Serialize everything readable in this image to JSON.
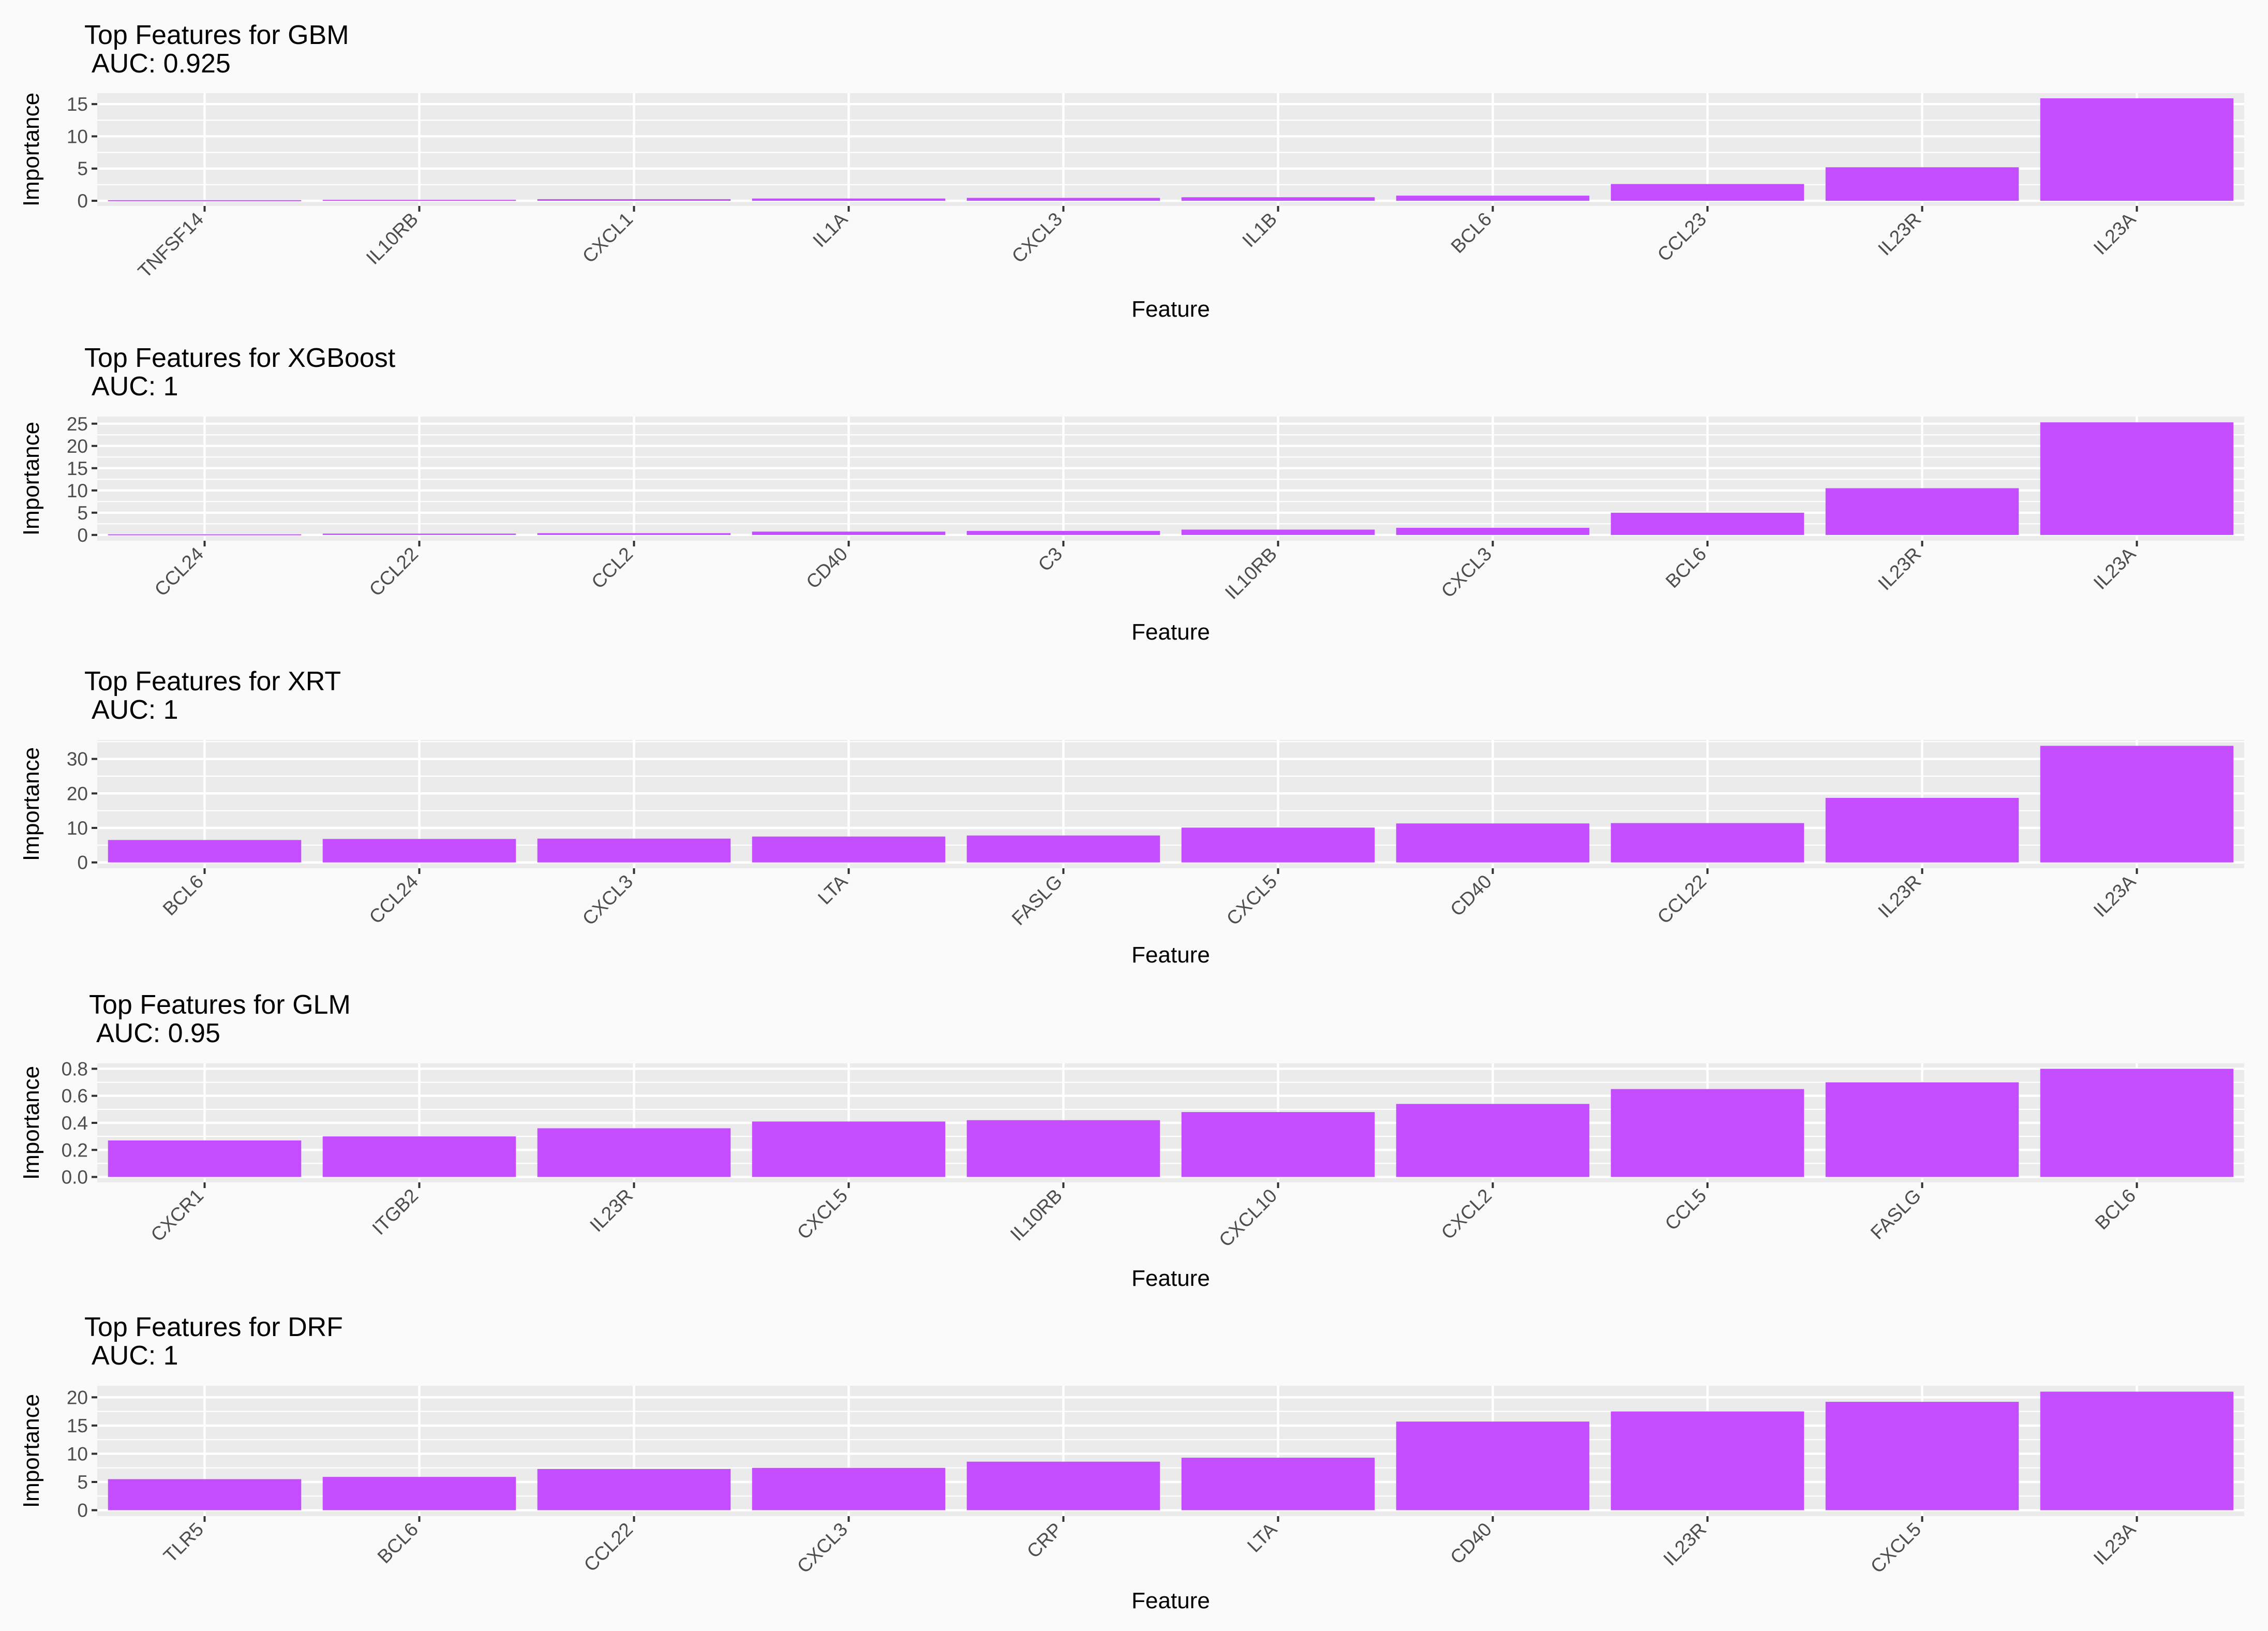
{
  "chart_data": [
    {
      "type": "bar",
      "title": "Top Features for GBM",
      "subtitle": "AUC: 0.925",
      "xlabel": "Feature",
      "ylabel": "Importance",
      "categories": [
        "TNFSF14",
        "IL10RB",
        "CXCL1",
        "IL1A",
        "CXCL3",
        "IL1B",
        "BCL6",
        "CCL23",
        "IL23R",
        "IL23A"
      ],
      "values": [
        0.1,
        0.15,
        0.25,
        0.35,
        0.45,
        0.55,
        0.8,
        2.6,
        5.2,
        15.9
      ],
      "yticks": [
        0,
        5,
        10,
        15
      ],
      "ylim": [
        -0.8,
        16.7
      ],
      "grid": true,
      "bar_color": "#C44DFF"
    },
    {
      "type": "bar",
      "title": "Top Features for XGBoost",
      "subtitle": "AUC: 1",
      "xlabel": "Feature",
      "ylabel": "Importance",
      "categories": [
        "CCL24",
        "CCL22",
        "CCL2",
        "CD40",
        "C3",
        "IL10RB",
        "CXCL3",
        "BCL6",
        "IL23R",
        "IL23A"
      ],
      "values": [
        0.15,
        0.3,
        0.4,
        0.75,
        0.9,
        1.2,
        1.6,
        5.0,
        10.5,
        25.3
      ],
      "yticks": [
        0,
        5,
        10,
        15,
        20,
        25
      ],
      "ylim": [
        -1.3,
        26.6
      ],
      "grid": true,
      "bar_color": "#C44DFF"
    },
    {
      "type": "bar",
      "title": "Top Features for XRT",
      "subtitle": "AUC: 1",
      "xlabel": "Feature",
      "ylabel": "Importance",
      "categories": [
        "BCL6",
        "CCL24",
        "CXCL3",
        "LTA",
        "FASLG",
        "CXCL5",
        "CD40",
        "CCL22",
        "IL23R",
        "IL23A"
      ],
      "values": [
        6.5,
        6.8,
        6.9,
        7.5,
        7.8,
        10.1,
        11.3,
        11.4,
        18.7,
        33.8
      ],
      "yticks": [
        0,
        10,
        20,
        30
      ],
      "ylim": [
        -1.7,
        35.5
      ],
      "grid": true,
      "bar_color": "#C44DFF"
    },
    {
      "type": "bar",
      "title": "Top Features for GLM",
      "subtitle": "AUC: 0.95",
      "xlabel": "Feature",
      "ylabel": "Importance",
      "categories": [
        "CXCR1",
        "ITGB2",
        "IL23R",
        "CXCL5",
        "IL10RB",
        "CXCL10",
        "CXCL2",
        "CCL5",
        "FASLG",
        "BCL6"
      ],
      "values": [
        0.27,
        0.3,
        0.36,
        0.41,
        0.42,
        0.48,
        0.54,
        0.65,
        0.7,
        0.8
      ],
      "yticks": [
        0.0,
        0.2,
        0.4,
        0.6,
        0.8
      ],
      "tick_labels": [
        "0.0",
        "0.2",
        "0.4",
        "0.6",
        "0.8"
      ],
      "ylim": [
        -0.04,
        0.84
      ],
      "grid": true,
      "bar_color": "#C44DFF"
    },
    {
      "type": "bar",
      "title": "Top Features for DRF",
      "subtitle": "AUC: 1",
      "xlabel": "Feature",
      "ylabel": "Importance",
      "categories": [
        "TLR5",
        "BCL6",
        "CCL22",
        "CXCL3",
        "CRP",
        "LTA",
        "CD40",
        "IL23R",
        "CXCL5",
        "IL23A"
      ],
      "values": [
        5.5,
        5.9,
        7.3,
        7.5,
        8.6,
        9.3,
        15.7,
        17.5,
        19.2,
        21.0
      ],
      "yticks": [
        0,
        5,
        10,
        15,
        20
      ],
      "ylim": [
        -1.05,
        22.05
      ],
      "grid": true,
      "bar_color": "#C44DFF"
    }
  ]
}
